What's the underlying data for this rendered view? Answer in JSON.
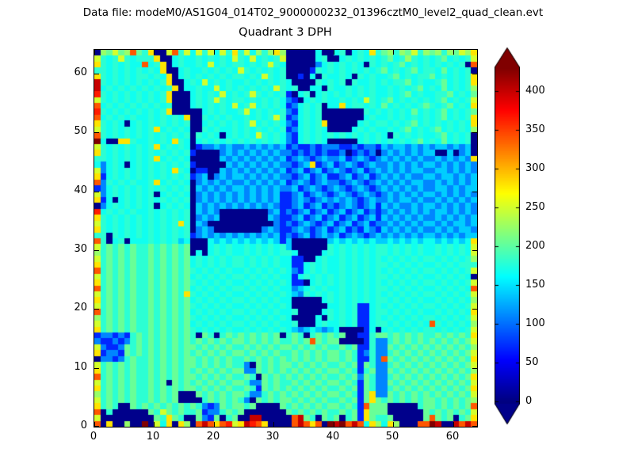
{
  "header": {
    "data_file_label": "Data file: modeM0/AS1G04_014T02_9000000232_01396cztM0_level2_quad_clean.evt"
  },
  "title": "Quadrant 3 DPH",
  "axes": {
    "x_tick_labels": [
      "0",
      "10",
      "20",
      "30",
      "40",
      "50",
      "60"
    ],
    "x_tick_values": [
      0,
      10,
      20,
      30,
      40,
      50,
      60
    ],
    "y_tick_labels": [
      "0",
      "10",
      "20",
      "30",
      "40",
      "50",
      "60"
    ],
    "y_tick_values": [
      0,
      10,
      20,
      30,
      40,
      50,
      60
    ],
    "x_range": [
      0,
      64
    ],
    "y_range": [
      0,
      64
    ]
  },
  "colorbar": {
    "tick_labels": [
      "0",
      "50",
      "100",
      "150",
      "200",
      "250",
      "300",
      "350",
      "400"
    ],
    "tick_values": [
      0,
      50,
      100,
      150,
      200,
      250,
      300,
      350,
      400
    ],
    "vmin": 0,
    "vmax": 430,
    "extend": "both",
    "over_color": "#800000",
    "under_color": "#00008b"
  },
  "chart_data": {
    "type": "heatmap",
    "title": "Quadrant 3 DPH",
    "xlabel": "",
    "ylabel": "",
    "x_range": [
      0,
      64
    ],
    "y_range": [
      0,
      64
    ],
    "grid_size": 64,
    "colormap": "jet",
    "value_range": [
      0,
      430
    ],
    "colorbar_ticks": [
      0,
      50,
      100,
      150,
      200,
      250,
      300,
      350,
      400
    ],
    "legend_position": "right-colorbar",
    "palette_values": {
      "0": 5,
      "1": 70,
      "2": 110,
      "3": 140,
      "4": 168,
      "5": 180,
      "6": 205,
      "7": 225,
      "8": 250,
      "9": 280,
      "A": 340,
      "B": 365,
      "C": 400,
      "D": 430
    },
    "rows_top_to_bottom": [
      "076867A659008A58485848595847579700000400450454956757685767576879",
      "8545854555900454454545485484545800000450045454545645754545645458",
      "95454544A459045445484545545458540000024545454054545645454545450A",
      "5545454545490045445454548545454500001545454545456454564554645450",
      "9545454554549045454545455454854500104054454054544564545564545459",
      "C545454545459004548454544545454540000545450544545455645445645459",
      "C454545454545904454484545454548545004405445454544545456454645457",
      "B545454545459000454548454585454510450454545454544545645445564546",
      "8545454545459000454585455454545421045454454548545645454545645458",
      "A454545454545000454545484584545412454504494554546454545654564549",
      "B545454545459000004545445845454521454500000005454545464545645456",
      "A454545445454549005454544545458512454500000004544545454545645459",
      "9545404545454545004545454584545421454590000045455454564545454549",
      "8545454545945454005454454545454512454540000454544545645456454547",
      "A545454545454545054540454548545421454545454545454054545445645450",
      "D400995445454954045454545454545421454540000045454545456454645450",
      "8545454545945454012232322323232312112122211212213233232323323230",
      "9545454545454545100002323232323221212121120121202323232330030230",
      "5545454545945454000003232323232312321232231232123232323223232329",
      "4245404545454545100000323232323221239123123212322323232332323232",
      "8245454545454954011003232323232312312312321231232323233223323232",
      "9145454545454545123023233232323221231231123123123232322332332323",
      "A254545445945454023232322323232312321232212321232323233223232323",
      "1245454545454545032323233232323223123212321232123232323223323233",
      "8245454545045454023232323232323112312321232123212323232332323232",
      "9140454545454545023232323232323112321232323212322323323223232323",
      "0245454545045454032323232323232112312312123212313232232332323232",
      "B454545445454545032320000000023121231231231231212323232323323232",
      "9545454545454545023230000000032112312312312312313232323223232323",
      "8545454545454595032000000000002121232123123123122323232332323323",
      "9545454545454545023200000000232112321231231213213232323223232332",
      "5505454545454545123232323232323121231232312321232323232332323233",
      "A504504445454534000434343434343130000003434343433434343443434349",
      "8565656556565656000454544545454530000005454545455454545445454548",
      "7565656556565656040454544545454554000045454545455454545445454548",
      "8565656556565656454545455454545441100454454545454545454554545457",
      "95656565565656564545454554545454411454544545454554545454454545",
      "A565656556565656545454544545454542145454454545454545454554545458",
      "8565656556565656454545455454545441454545454545455454545445454540",
      "9565656556565656545454544545454541104545454545454545454554545458",
      "A56565655656565645454545545454544234545445454545545454544545454A",
      "8565656556565659545454544545454543254545454545454545454554545458",
      "9565656556565656454545455454545440000045454545455454545445454547",
      "8565656556565656545454544545454540000004454511454545454554545458",
      "A565656556565656454545455454545445000045454511455454545445454549",
      "7565656556565656545454544545454540000405454511454545454554545458",
      "856565655656565645454545545454544500045445451145 5454545 4A5454547",
      "9565656556565656545454544545454543234323400001404545454554545458",
      "1221215656565656506505656565656056505656560011566565656556565659",
      "21121256565656565656565665656565 5656A656600001522565656565656568",
      "8211265656565656656565655656565665656565565611522656565656565657",
      "9122165656565656565656566565656556565656656512522565656565656568",
      "022125655656565665656565565656565656565665651152A656565656565659",
      "8565656556565656656565655206565665656565565616522565656565656568",
      "9565656556565656565656566226565656565656656515622656565656565657",
      "A565656556565656656565655650656565656565565626522565656565656569",
      "8565656556560656565656566522656556565656656516522656565656565658",
      "9565656556565656656565655651656565656565565616522565656565656569",
      "7565656556565600065656566522565656565656656516922656565656565658",
      "8565656556565600005656565206565665656565565616965656565665656567",
      "95650065656565656521265665600006565656566565 1A66600000566565656A",
      "A050000006586565561225656000000065656565565619666000000656565658",
      "8000000000659650062160560 0CC00000AC6506560561965560000 06A6560569",
      "A0900700D08490970ACA9AB89CBA90000ACA9A0DCDACA497497000AADC00CACA"
    ]
  }
}
